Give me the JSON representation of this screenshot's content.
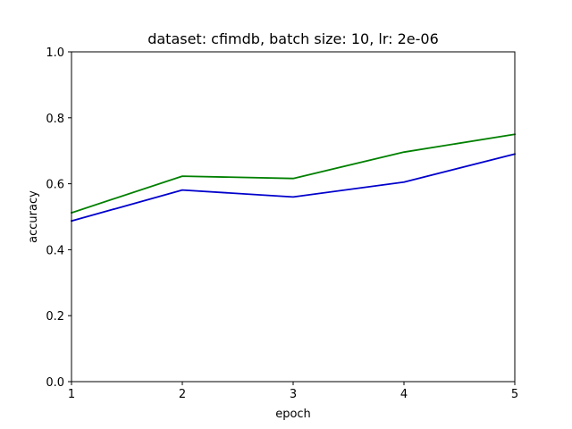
{
  "chart_data": {
    "type": "line",
    "title": "dataset: cfimdb, batch size: 10, lr: 2e-06",
    "xlabel": "epoch",
    "ylabel": "accuracy",
    "x": [
      1,
      2,
      3,
      4,
      5
    ],
    "xlim": [
      1,
      5
    ],
    "ylim": [
      0.0,
      1.0
    ],
    "xticks": [
      "1",
      "2",
      "3",
      "4",
      "5"
    ],
    "yticks": [
      "0.0",
      "0.2",
      "0.4",
      "0.6",
      "0.8",
      "1.0"
    ],
    "grid": false,
    "series": [
      {
        "values": [
          0.512,
          0.623,
          0.616,
          0.696,
          0.75
        ],
        "color": "#008000"
      },
      {
        "values": [
          0.487,
          0.581,
          0.56,
          0.605,
          0.69
        ],
        "color": "#0000cc"
      }
    ]
  }
}
